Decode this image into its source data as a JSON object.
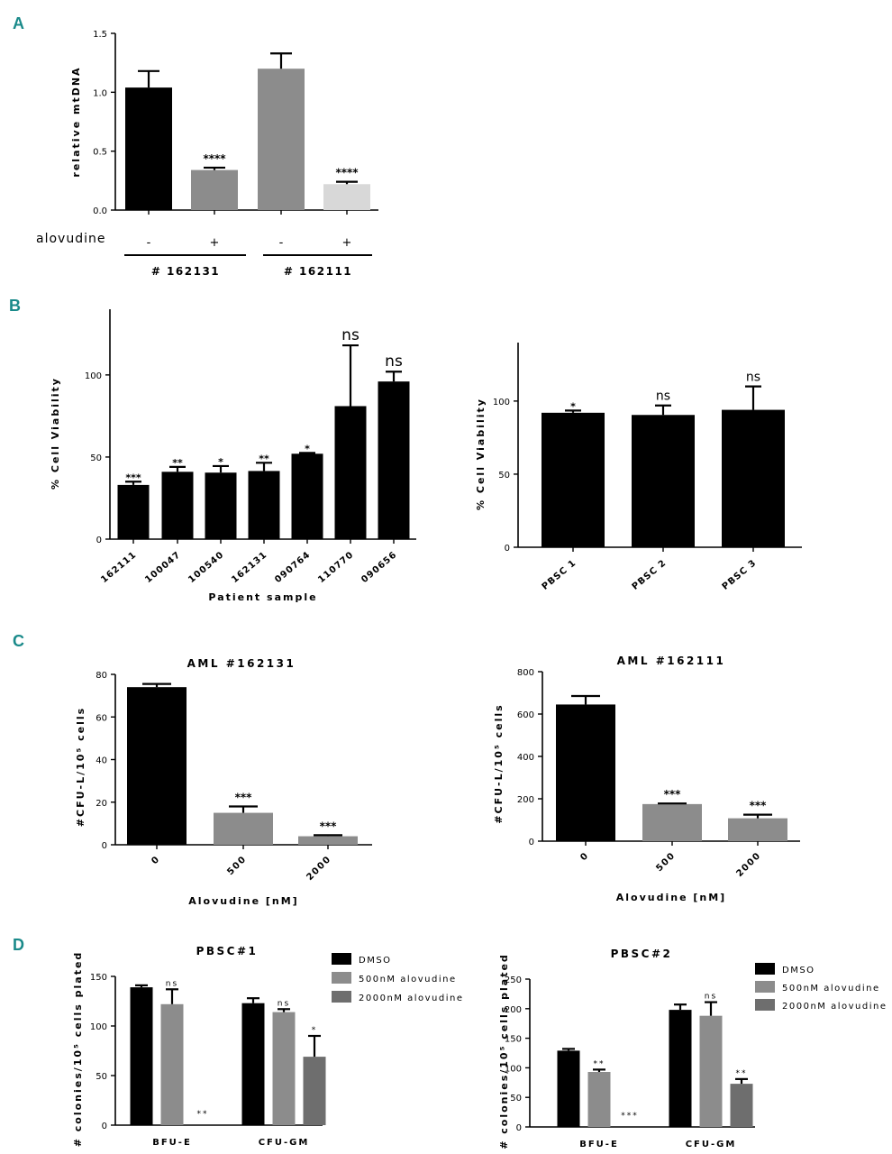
{
  "panels": {
    "A": "A",
    "B": "B",
    "C": "C",
    "D": "D"
  },
  "colors": {
    "panel_label": "#1a8a8a",
    "black": "#000000",
    "gray": "#8c8c8c",
    "dark_gray": "#6e6e6e",
    "light_gray": "#d8d8d8"
  },
  "chart_data": [
    {
      "id": "A",
      "type": "bar",
      "title": "",
      "xlabel": "",
      "ylabel": "relative mtDNA",
      "ylim": [
        0,
        1.5
      ],
      "yticks": [
        "0.0",
        "0.5",
        "1.0",
        "1.5"
      ],
      "categories": [
        "-",
        "+",
        "-",
        "+"
      ],
      "treatment_label": "alovudine",
      "groups": [
        "# 162131",
        "# 162111"
      ],
      "values": [
        1.04,
        0.34,
        1.2,
        0.22
      ],
      "errors": [
        0.14,
        0.02,
        0.13,
        0.02
      ],
      "significance": [
        "",
        "****",
        "",
        "****"
      ],
      "colors": [
        "#000000",
        "#8c8c8c",
        "#8c8c8c",
        "#d8d8d8"
      ]
    },
    {
      "id": "B1",
      "type": "bar",
      "title": "",
      "xlabel": "Patient sample",
      "ylabel": "% Cell Viability",
      "ylim": [
        0,
        140
      ],
      "yticks": [
        "0",
        "50",
        "100"
      ],
      "categories": [
        "162111",
        "100047",
        "100540",
        "162131",
        "090764",
        "110770",
        "090656"
      ],
      "values": [
        33,
        41,
        40.5,
        41.5,
        52,
        81,
        96
      ],
      "errors": [
        2,
        3,
        4,
        5,
        0.5,
        37,
        6
      ],
      "significance": [
        "***",
        "**",
        "*",
        "**",
        "*",
        "ns",
        "ns"
      ]
    },
    {
      "id": "B2",
      "type": "bar",
      "title": "",
      "xlabel": "",
      "ylabel": "% Cell Viability",
      "ylim": [
        0,
        140
      ],
      "yticks": [
        "0",
        "50",
        "100"
      ],
      "categories": [
        "PBSC 1",
        "PBSC 2",
        "PBSC 3"
      ],
      "values": [
        92,
        90.5,
        94
      ],
      "errors": [
        1.5,
        6.5,
        16
      ],
      "significance": [
        "*",
        "ns",
        "ns"
      ]
    },
    {
      "id": "C1",
      "type": "bar",
      "title": "AML #162131",
      "xlabel": "Alovudine [nM]",
      "ylabel": "#CFU-L/10⁵ cells",
      "ylim": [
        0,
        80
      ],
      "yticks": [
        "0",
        "20",
        "40",
        "60",
        "80"
      ],
      "categories": [
        "0",
        "500",
        "2000"
      ],
      "values": [
        74,
        15,
        4
      ],
      "errors": [
        1.5,
        3,
        0.5
      ],
      "significance": [
        "",
        "***",
        "***"
      ],
      "colors": [
        "#000000",
        "#8c8c8c",
        "#8c8c8c"
      ]
    },
    {
      "id": "C2",
      "type": "bar",
      "title": "AML #162111",
      "xlabel": "Alovudine [nM]",
      "ylabel": "#CFU-L/10⁵ cells",
      "ylim": [
        0,
        800
      ],
      "yticks": [
        "0",
        "200",
        "400",
        "600",
        "800"
      ],
      "categories": [
        "0",
        "500",
        "2000"
      ],
      "values": [
        645,
        175,
        108
      ],
      "errors": [
        40,
        3,
        17
      ],
      "significance": [
        "",
        "***",
        "***"
      ],
      "colors": [
        "#000000",
        "#8c8c8c",
        "#8c8c8c"
      ]
    },
    {
      "id": "D1",
      "type": "bar",
      "title": "PBSC#1",
      "xlabel": "",
      "ylabel": "# colonies/10⁵ cells plated",
      "ylim": [
        0,
        150
      ],
      "yticks": [
        "0",
        "50",
        "100",
        "150"
      ],
      "categories": [
        "BFU-E",
        "CFU-GM"
      ],
      "series": [
        {
          "name": "DMSO",
          "values": [
            139,
            123
          ],
          "errors": [
            2,
            5
          ],
          "significance": [
            "",
            ""
          ]
        },
        {
          "name": "500nM alovudine",
          "values": [
            122,
            114
          ],
          "errors": [
            15,
            3
          ],
          "significance": [
            "ns",
            "ns"
          ]
        },
        {
          "name": "2000nM alovudine",
          "values": [
            0,
            69
          ],
          "errors": [
            0,
            21
          ],
          "significance": [
            "**",
            "*"
          ]
        }
      ],
      "colors": [
        "#000000",
        "#8c8c8c",
        "#6e6e6e"
      ]
    },
    {
      "id": "D2",
      "type": "bar",
      "title": "PBSC#2",
      "xlabel": "",
      "ylabel": "# colonies/10⁵ cells plated",
      "ylim": [
        0,
        250
      ],
      "yticks": [
        "0",
        "50",
        "100",
        "150",
        "200",
        "250"
      ],
      "categories": [
        "BFU-E",
        "CFU-GM"
      ],
      "series": [
        {
          "name": "DMSO",
          "values": [
            129,
            198
          ],
          "errors": [
            3,
            9
          ],
          "significance": [
            "",
            ""
          ]
        },
        {
          "name": "500nM alovudine",
          "values": [
            93,
            188
          ],
          "errors": [
            4,
            23
          ],
          "significance": [
            "**",
            "ns"
          ]
        },
        {
          "name": "2000nM alovudine",
          "values": [
            0,
            73
          ],
          "errors": [
            0,
            8
          ],
          "significance": [
            "***",
            "**"
          ]
        }
      ],
      "colors": [
        "#000000",
        "#8c8c8c",
        "#6e6e6e"
      ]
    }
  ]
}
